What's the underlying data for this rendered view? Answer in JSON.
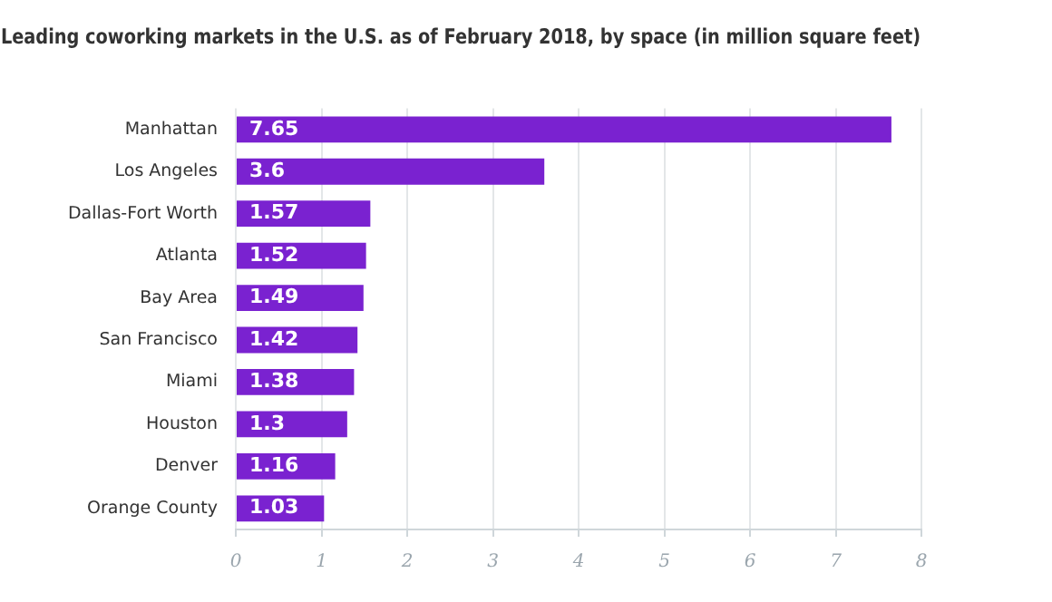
{
  "chart_data": {
    "type": "bar",
    "orientation": "horizontal",
    "title": "Leading coworking markets in the U.S. as of February 2018, by space (in million square feet)",
    "categories": [
      "Manhattan",
      "Los Angeles",
      "Dallas-Fort Worth",
      "Atlanta",
      "Bay Area",
      "San Francisco",
      "Miami",
      "Houston",
      "Denver",
      "Orange County"
    ],
    "values": [
      7.65,
      3.6,
      1.57,
      1.52,
      1.49,
      1.42,
      1.38,
      1.3,
      1.16,
      1.03
    ],
    "color": "#7a22d0",
    "xlim": [
      0,
      8
    ],
    "xticks": [
      0,
      1,
      2,
      3,
      4,
      5,
      6,
      7,
      8
    ],
    "grid": "x",
    "data_labels": true
  }
}
